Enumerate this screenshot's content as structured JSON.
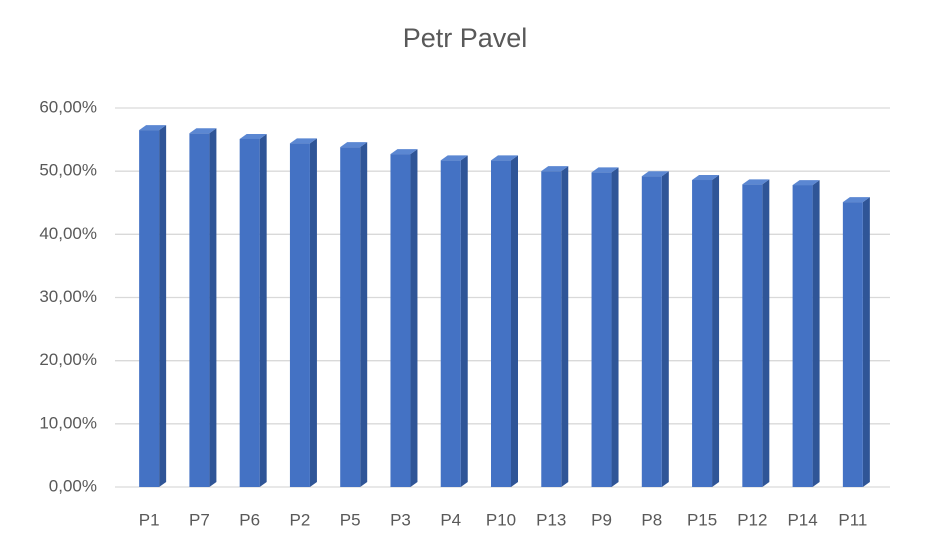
{
  "chart_data": {
    "type": "bar",
    "title": "Petr Pavel",
    "categories": [
      "P1",
      "P7",
      "P6",
      "P2",
      "P5",
      "P3",
      "P4",
      "P10",
      "P13",
      "P9",
      "P8",
      "P15",
      "P12",
      "P14",
      "P11"
    ],
    "values": [
      56.5,
      56.0,
      55.1,
      54.4,
      53.8,
      52.7,
      51.7,
      51.7,
      50.0,
      49.8,
      49.2,
      48.6,
      47.9,
      47.8,
      45.1
    ],
    "color": "#4472c4",
    "ylim": [
      0,
      60
    ],
    "yticks": [
      {
        "value": 0,
        "label": "0,00%"
      },
      {
        "value": 10,
        "label": "10,00%"
      },
      {
        "value": 20,
        "label": "20,00%"
      },
      {
        "value": 30,
        "label": "30,00%"
      },
      {
        "value": 40,
        "label": "40,00%"
      },
      {
        "value": 50,
        "label": "50,00%"
      },
      {
        "value": 60,
        "label": "60,00%"
      }
    ],
    "grid": true
  }
}
